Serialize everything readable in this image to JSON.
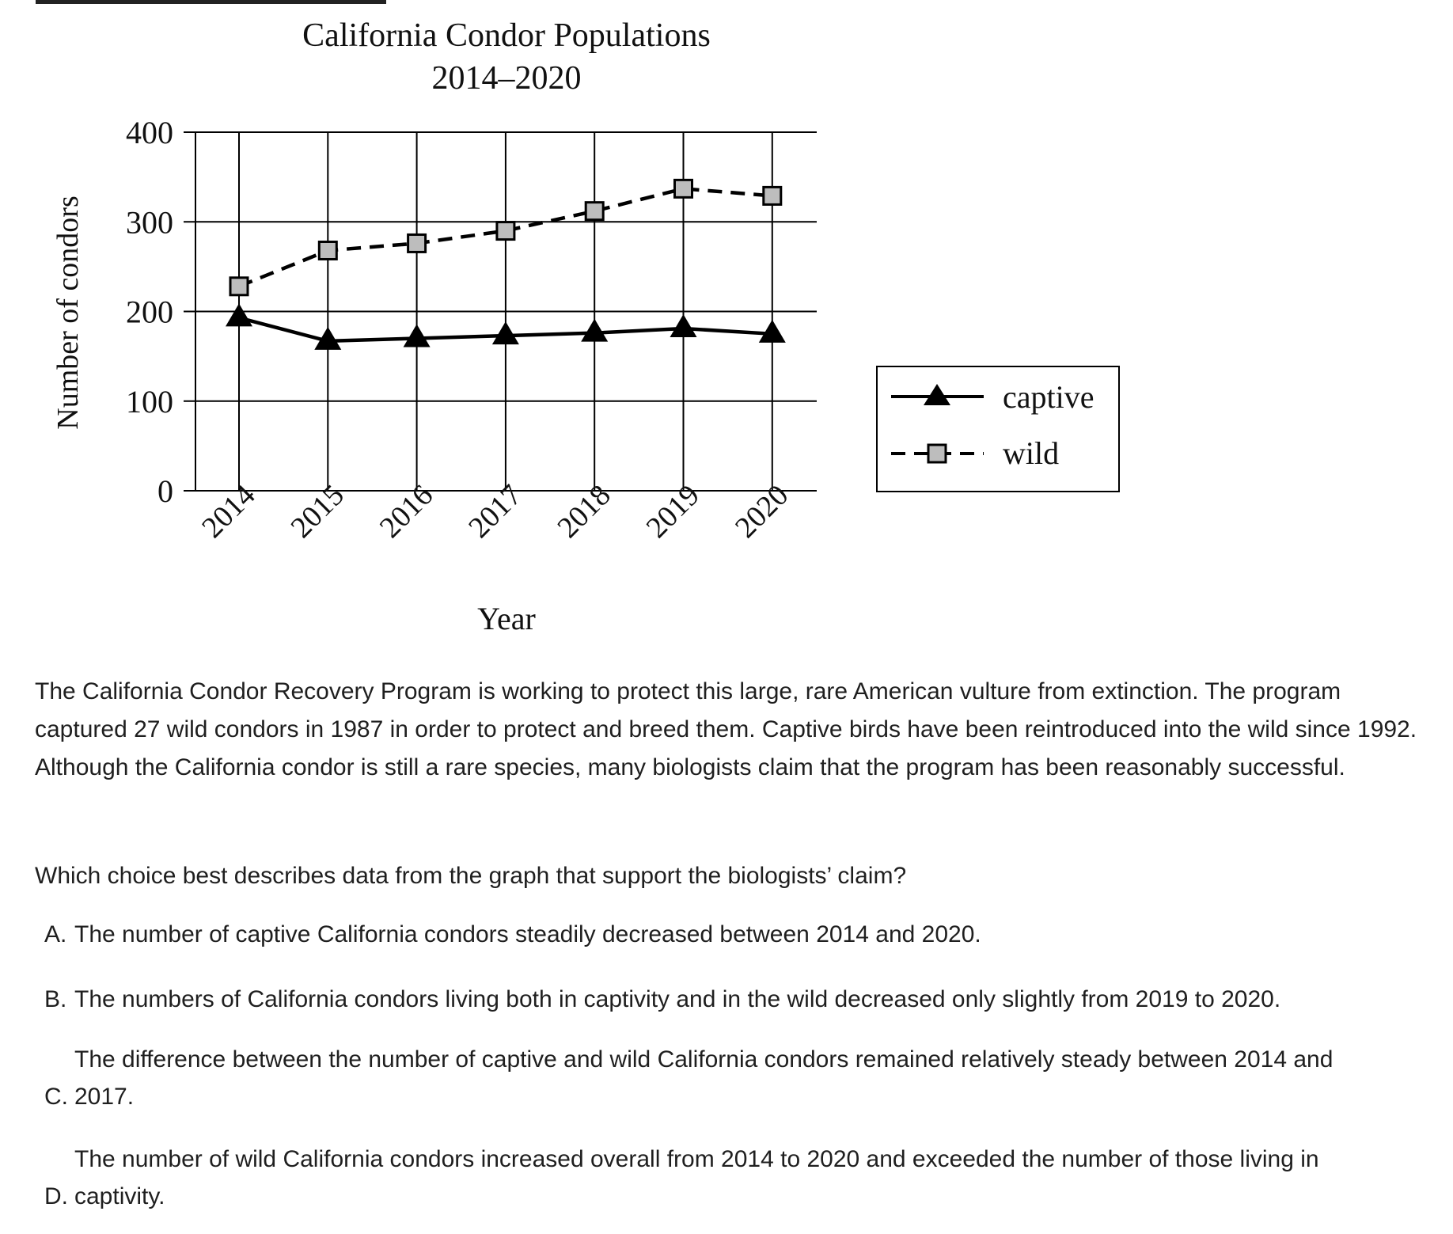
{
  "chart_data": {
    "type": "line",
    "title": "California Condor Populations",
    "subtitle": "2014–2020",
    "xlabel": "Year",
    "ylabel": "Number of condors",
    "x": [
      "2014",
      "2015",
      "2016",
      "2017",
      "2018",
      "2019",
      "2020"
    ],
    "yticks": [
      "0",
      "100",
      "200",
      "300",
      "400"
    ],
    "ylim": [
      0,
      400
    ],
    "grid": true,
    "legend_position": "right",
    "series": [
      {
        "name": "captive",
        "values": [
          193,
          167,
          170,
          173,
          176,
          181,
          175
        ],
        "line_style": "solid",
        "marker": "filled-triangle",
        "color": "#000000"
      },
      {
        "name": "wild",
        "values": [
          228,
          268,
          276,
          290,
          312,
          337,
          329
        ],
        "line_style": "dashed",
        "marker": "gray-square",
        "color": "#000000",
        "marker_fill": "#bdbdbd"
      }
    ]
  },
  "passage": "The California Condor Recovery Program is working to protect this large, rare American vulture from extinction. The program captured 27 wild condors in 1987 in order to protect and breed them. Captive birds have been reintroduced into the wild since 1992. Although the California condor is still a rare species, many biologists claim that the program has been reasonably successful.",
  "question": "Which choice best describes data from the graph that support the biologists’ claim?",
  "options": [
    {
      "letter": "A.",
      "text": "The number of captive California condors steadily decreased between 2014 and 2020."
    },
    {
      "letter": "B.",
      "text": "The numbers of California condors living both in captivity and in the wild decreased only slightly from 2019 to 2020."
    },
    {
      "letter": "C.",
      "text_line1": "The difference between the number of captive and wild California condors remained relatively steady between 2014 and",
      "text_line2": "2017."
    },
    {
      "letter": "D.",
      "text_line1": "The number of wild California condors increased overall from 2014 to 2020 and exceeded the number of those living in",
      "text_line2": "captivity."
    }
  ]
}
